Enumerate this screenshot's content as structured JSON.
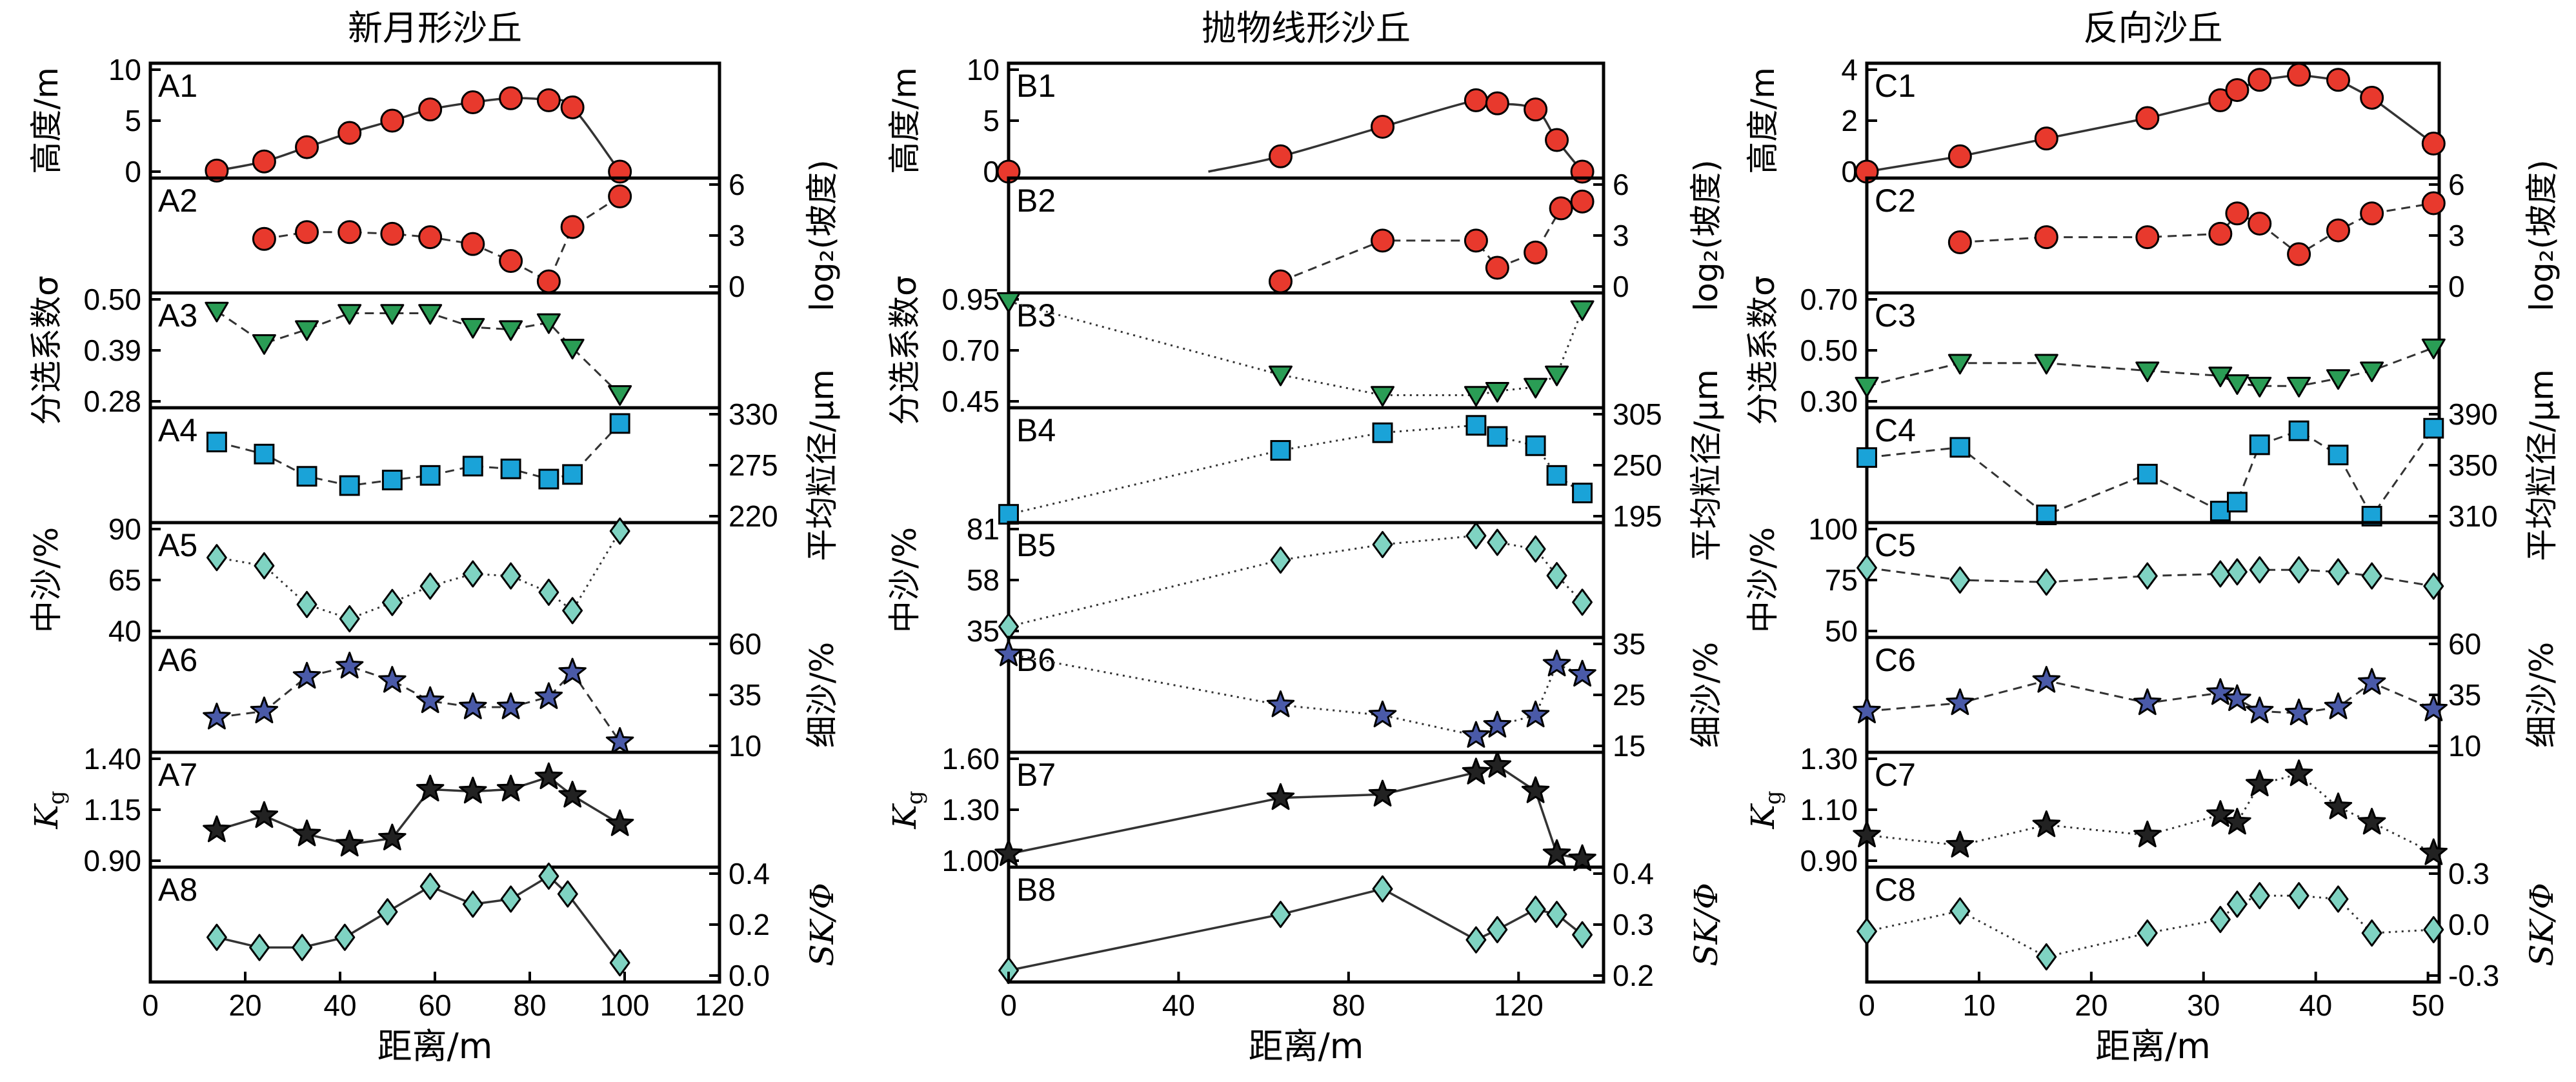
{
  "column_titles": [
    "新月形沙丘",
    "抛物线形沙丘",
    "反向沙丘"
  ],
  "x_axis_label": "距离/m",
  "y_labels_left": [
    "高度/m",
    "分选系数σ",
    "中沙/%",
    "K_g"
  ],
  "y_labels_right": [
    "log₂(坡度)",
    "平均粒径/μm",
    "细沙/%",
    "SK/Φ"
  ],
  "colors": {
    "height": "#e8392d",
    "slope": "#e8392d",
    "sorting": "#2a9d55",
    "mean": "#1aa3d8",
    "medium": "#7fd3c2",
    "fine": "#4a5aa8",
    "kg": "#222222",
    "sk": "#7fd3c2"
  },
  "chart_data": [
    {
      "type": "line",
      "title": "新月形沙丘",
      "xlabel": "距离/m",
      "xlim": [
        0,
        120
      ],
      "xticks": [
        0,
        20,
        40,
        60,
        80,
        100,
        120
      ],
      "panels": [
        {
          "label": "A1",
          "var": "height",
          "ylim": [
            0,
            10
          ],
          "yticks": [
            0,
            5,
            10
          ],
          "ylabel": "高度/m",
          "side": "left",
          "marker": "circle",
          "line": "solid",
          "smooth": true,
          "x": [
            14,
            24,
            33,
            42,
            51,
            59,
            68,
            76,
            84,
            89,
            99
          ],
          "y": [
            0.1,
            1.0,
            2.4,
            3.8,
            5.0,
            6.1,
            6.8,
            7.2,
            7.0,
            6.3,
            0.0
          ]
        },
        {
          "label": "A2",
          "var": "slope",
          "ylim": [
            0,
            6
          ],
          "yticks": [
            0,
            3,
            6
          ],
          "ylabel": "log₂(坡度)",
          "side": "right",
          "marker": "circle",
          "line": "dashed",
          "x": [
            24,
            33,
            42,
            51,
            59,
            68,
            76,
            84,
            89,
            99
          ],
          "y": [
            2.8,
            3.2,
            3.2,
            3.1,
            2.9,
            2.5,
            1.5,
            0.3,
            3.5,
            5.3
          ]
        },
        {
          "label": "A3",
          "var": "sorting",
          "ylim": [
            0.28,
            0.5
          ],
          "yticks": [
            0.28,
            0.39,
            0.5
          ],
          "ylabel": "分选系数σ",
          "side": "left",
          "marker": "triangle",
          "line": "dashed",
          "x": [
            14,
            24,
            33,
            42,
            51,
            59,
            68,
            76,
            84,
            89,
            99
          ],
          "y": [
            0.475,
            0.405,
            0.435,
            0.47,
            0.47,
            0.47,
            0.44,
            0.435,
            0.45,
            0.395,
            0.295
          ]
        },
        {
          "label": "A4",
          "var": "mean",
          "ylim": [
            220,
            330
          ],
          "yticks": [
            220,
            275,
            330
          ],
          "ylabel": "平均粒径/μm",
          "side": "right",
          "marker": "square",
          "line": "dashed",
          "x": [
            14,
            24,
            33,
            42,
            51,
            59,
            68,
            76,
            84,
            89,
            99
          ],
          "y": [
            300,
            287,
            263,
            253,
            259,
            264,
            274,
            271,
            260,
            265,
            320
          ]
        },
        {
          "label": "A5",
          "var": "medium",
          "ylim": [
            40,
            90
          ],
          "yticks": [
            40,
            65,
            90
          ],
          "ylabel": "中沙/%",
          "side": "left",
          "marker": "diamond",
          "line": "dotted",
          "x": [
            14,
            24,
            33,
            42,
            51,
            59,
            68,
            76,
            84,
            89,
            99
          ],
          "y": [
            76,
            72,
            53,
            46,
            54,
            62,
            68,
            67,
            59,
            50,
            89
          ]
        },
        {
          "label": "A6",
          "var": "fine",
          "ylim": [
            10,
            60
          ],
          "yticks": [
            10,
            35,
            60
          ],
          "ylabel": "细沙/%",
          "side": "right",
          "marker": "star",
          "line": "dashed",
          "x": [
            14,
            24,
            33,
            42,
            51,
            59,
            68,
            76,
            84,
            89,
            99
          ],
          "y": [
            24,
            27,
            44,
            49,
            42,
            32,
            29,
            29,
            34,
            46,
            12
          ]
        },
        {
          "label": "A7",
          "var": "kg",
          "ylim": [
            0.9,
            1.4
          ],
          "yticks": [
            0.9,
            1.15,
            1.4
          ],
          "ylabel": "K_g",
          "side": "left",
          "marker": "star",
          "line": "solid",
          "x": [
            14,
            24,
            33,
            42,
            51,
            59,
            68,
            76,
            84,
            89,
            99
          ],
          "y": [
            1.05,
            1.12,
            1.03,
            0.98,
            1.01,
            1.25,
            1.24,
            1.25,
            1.31,
            1.22,
            1.08
          ]
        },
        {
          "label": "A8",
          "var": "sk",
          "ylim": [
            0.0,
            0.4
          ],
          "yticks": [
            0.0,
            0.2,
            0.4
          ],
          "ylabel": "SK/Φ",
          "side": "right",
          "marker": "diamond",
          "line": "solid",
          "x": [
            14,
            23,
            32,
            41,
            50,
            59,
            68,
            76,
            84,
            88,
            99
          ],
          "y": [
            0.15,
            0.11,
            0.11,
            0.15,
            0.25,
            0.35,
            0.28,
            0.3,
            0.39,
            0.32,
            0.05
          ]
        }
      ]
    },
    {
      "type": "line",
      "title": "抛物线形沙丘",
      "xlabel": "距离/m",
      "xlim": [
        0,
        140
      ],
      "xticks": [
        0,
        40,
        80,
        120
      ],
      "panels": [
        {
          "label": "B1",
          "var": "height",
          "ylim": [
            0,
            10
          ],
          "yticks": [
            0,
            5,
            10
          ],
          "ylabel": "高度/m",
          "side": "left",
          "marker": "circle",
          "line": "solid",
          "smooth": true,
          "curve_start": 47,
          "x": [
            0,
            64,
            88,
            110,
            115,
            124,
            129,
            135
          ],
          "y": [
            0,
            1.5,
            4.4,
            7.0,
            6.7,
            6.1,
            3.1,
            0.0
          ]
        },
        {
          "label": "B2",
          "var": "slope",
          "ylim": [
            0,
            6
          ],
          "yticks": [
            0,
            3,
            6
          ],
          "ylabel": "log₂(坡度)",
          "side": "right",
          "marker": "circle",
          "line": "dashed",
          "x": [
            64,
            88,
            110,
            115,
            124,
            130,
            135
          ],
          "y": [
            0.3,
            2.7,
            2.7,
            1.1,
            2.0,
            4.6,
            5.0
          ]
        },
        {
          "label": "B3",
          "var": "sorting",
          "ylim": [
            0.45,
            0.95
          ],
          "yticks": [
            0.45,
            0.7,
            0.95
          ],
          "ylabel": "分选系数σ",
          "side": "left",
          "marker": "triangle",
          "line": "dotted",
          "x": [
            0,
            64,
            88,
            110,
            115,
            124,
            129,
            135
          ],
          "y": [
            0.94,
            0.58,
            0.48,
            0.48,
            0.5,
            0.52,
            0.58,
            0.9
          ]
        },
        {
          "label": "B4",
          "var": "mean",
          "ylim": [
            195,
            305
          ],
          "yticks": [
            195,
            250,
            305
          ],
          "ylabel": "平均粒径/μm",
          "side": "right",
          "marker": "square",
          "line": "dotted",
          "x": [
            0,
            64,
            88,
            110,
            115,
            124,
            129,
            135
          ],
          "y": [
            197,
            266,
            285,
            293,
            281,
            271,
            239,
            220
          ]
        },
        {
          "label": "B5",
          "var": "medium",
          "ylim": [
            35,
            81
          ],
          "yticks": [
            35,
            58,
            81
          ],
          "ylabel": "中沙/%",
          "side": "left",
          "marker": "diamond",
          "line": "dotted",
          "x": [
            0,
            64,
            88,
            110,
            115,
            124,
            129,
            135
          ],
          "y": [
            37,
            67,
            74,
            78,
            75,
            72,
            60,
            48
          ]
        },
        {
          "label": "B6",
          "var": "fine",
          "ylim": [
            15,
            35
          ],
          "yticks": [
            15,
            25,
            35
          ],
          "ylabel": "细沙/%",
          "side": "right",
          "marker": "star",
          "line": "dotted",
          "x": [
            0,
            64,
            88,
            110,
            115,
            124,
            129,
            135
          ],
          "y": [
            33,
            23,
            21,
            17,
            19,
            21,
            31,
            29
          ]
        },
        {
          "label": "B7",
          "var": "kg",
          "ylim": [
            1.0,
            1.6
          ],
          "yticks": [
            1.0,
            1.3,
            1.6
          ],
          "ylabel": "K_g",
          "side": "left",
          "marker": "star",
          "line": "solid",
          "x": [
            0,
            64,
            88,
            110,
            115,
            124,
            129,
            135
          ],
          "y": [
            1.04,
            1.37,
            1.39,
            1.52,
            1.56,
            1.41,
            1.04,
            1.01
          ]
        },
        {
          "label": "B8",
          "var": "sk",
          "ylim": [
            0.2,
            0.4
          ],
          "yticks": [
            0.2,
            0.3,
            0.4
          ],
          "ylabel": "SK/Φ",
          "side": "right",
          "marker": "diamond",
          "line": "solid",
          "x": [
            0,
            64,
            88,
            110,
            115,
            124,
            129,
            135
          ],
          "y": [
            0.21,
            0.32,
            0.37,
            0.27,
            0.29,
            0.33,
            0.32,
            0.28
          ]
        }
      ]
    },
    {
      "type": "line",
      "title": "反向沙丘",
      "xlabel": "距离/m",
      "xlim": [
        0,
        51
      ],
      "xticks": [
        0,
        10,
        20,
        30,
        40,
        50
      ],
      "panels": [
        {
          "label": "C1",
          "var": "height",
          "ylim": [
            0,
            4
          ],
          "yticks": [
            0,
            2,
            4
          ],
          "ylabel": "高度/m",
          "side": "left",
          "marker": "circle",
          "line": "solid",
          "x": [
            0,
            8.3,
            16,
            25,
            31.5,
            33,
            35,
            38.5,
            42,
            45,
            50.5
          ],
          "y": [
            0.0,
            0.6,
            1.3,
            2.1,
            2.8,
            3.2,
            3.6,
            3.8,
            3.6,
            2.9,
            1.1
          ]
        },
        {
          "label": "C2",
          "var": "slope",
          "ylim": [
            0,
            6
          ],
          "yticks": [
            0,
            3,
            6
          ],
          "ylabel": "log₂(坡度)",
          "side": "right",
          "marker": "circle",
          "line": "dashed",
          "x": [
            8.3,
            16,
            25,
            31.5,
            33,
            35,
            38.5,
            42,
            45,
            50.5
          ],
          "y": [
            2.6,
            2.9,
            2.9,
            3.1,
            4.3,
            3.7,
            1.9,
            3.3,
            4.3,
            4.9
          ]
        },
        {
          "label": "C3",
          "var": "sorting",
          "ylim": [
            0.3,
            0.7
          ],
          "yticks": [
            0.3,
            0.5,
            0.7
          ],
          "ylabel": "分选系数σ",
          "side": "left",
          "marker": "triangle",
          "line": "dashed",
          "x": [
            0,
            8.3,
            16,
            25,
            31.5,
            33,
            35,
            38.5,
            42,
            45,
            50.5
          ],
          "y": [
            0.36,
            0.45,
            0.45,
            0.42,
            0.4,
            0.37,
            0.36,
            0.36,
            0.39,
            0.42,
            0.51
          ]
        },
        {
          "label": "C4",
          "var": "mean",
          "ylim": [
            310,
            390
          ],
          "yticks": [
            310,
            350,
            390
          ],
          "ylabel": "平均粒径/μm",
          "side": "right",
          "marker": "square",
          "line": "dashed",
          "x": [
            0,
            8.3,
            16,
            25,
            31.5,
            33,
            35,
            38.5,
            42,
            45,
            50.5
          ],
          "y": [
            356,
            364,
            311,
            343,
            314,
            321,
            366,
            377,
            358,
            310,
            379
          ]
        },
        {
          "label": "C5",
          "var": "medium",
          "ylim": [
            50,
            100
          ],
          "yticks": [
            50,
            75,
            100
          ],
          "ylabel": "中沙/%",
          "side": "left",
          "marker": "diamond",
          "line": "dashed",
          "x": [
            0,
            8.3,
            16,
            25,
            31.5,
            33,
            35,
            38.5,
            42,
            45,
            50.5
          ],
          "y": [
            81,
            75,
            74,
            77,
            78,
            79,
            80,
            80,
            79,
            77,
            72
          ]
        },
        {
          "label": "C6",
          "var": "fine",
          "ylim": [
            10,
            60
          ],
          "yticks": [
            10,
            35,
            60
          ],
          "ylabel": "细沙/%",
          "side": "right",
          "marker": "star",
          "line": "dashed",
          "x": [
            0,
            8.3,
            16,
            25,
            31.5,
            33,
            35,
            38.5,
            42,
            45,
            50.5
          ],
          "y": [
            27,
            31,
            42,
            31,
            36,
            33,
            27,
            26,
            29,
            41,
            28
          ]
        },
        {
          "label": "C7",
          "var": "kg",
          "ylim": [
            0.9,
            1.3
          ],
          "yticks": [
            0.9,
            1.1,
            1.3
          ],
          "ylabel": "K_g",
          "side": "left",
          "marker": "star",
          "line": "dotted",
          "x": [
            0,
            8.3,
            16,
            25,
            31.5,
            33,
            35,
            38.5,
            42,
            45,
            50.5
          ],
          "y": [
            1.0,
            0.96,
            1.04,
            1.0,
            1.08,
            1.05,
            1.2,
            1.24,
            1.11,
            1.05,
            0.93
          ]
        },
        {
          "label": "C8",
          "var": "sk",
          "ylim": [
            -0.3,
            0.3
          ],
          "yticks": [
            -0.3,
            0.0,
            0.3
          ],
          "ylabel": "SK/Φ",
          "side": "right",
          "marker": "diamond",
          "line": "dotted",
          "x": [
            0,
            8.3,
            16,
            25,
            31.5,
            33,
            35,
            38.5,
            42,
            45,
            50.5
          ],
          "y": [
            -0.04,
            0.08,
            -0.19,
            -0.05,
            0.03,
            0.12,
            0.17,
            0.17,
            0.15,
            -0.05,
            -0.03
          ]
        }
      ]
    }
  ]
}
